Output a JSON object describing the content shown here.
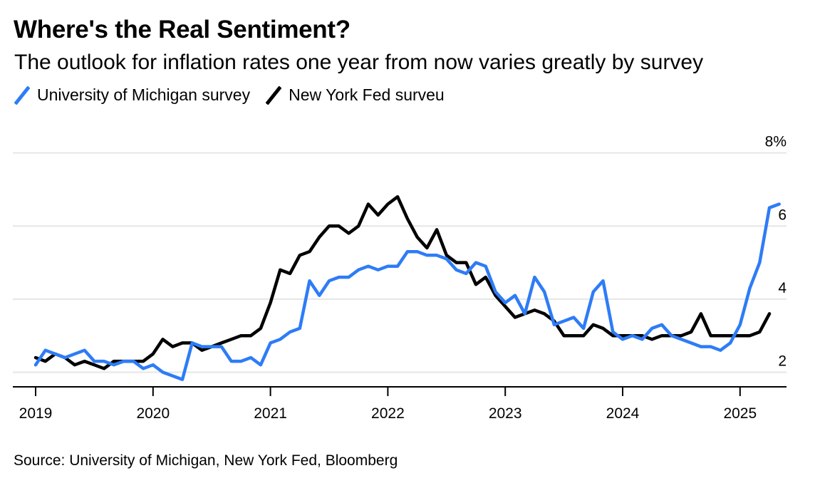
{
  "title": "Where's the Real Sentiment?",
  "subtitle": "The outlook for inflation rates one year from now varies greatly by survey",
  "source": "Source: University of Michigan, New York Fed, Bloomberg",
  "chart_data": {
    "type": "line",
    "title": "Where's the Real Sentiment?",
    "subtitle": "The outlook for inflation rates one year from now varies greatly by survey",
    "xlabel": "",
    "ylabel": "",
    "x_ticks": [
      "2019",
      "2020",
      "2021",
      "2022",
      "2023",
      "2024",
      "2025"
    ],
    "y_ticks": [
      "2",
      "4",
      "6",
      "8%"
    ],
    "y_tick_values": [
      2,
      4,
      6,
      8
    ],
    "ylim": [
      1.6,
      8.5
    ],
    "xlim": [
      "2019-01",
      "2025-08"
    ],
    "grid": "horizontal",
    "legend_position": "top-left",
    "y_axis_side": "right",
    "series": [
      {
        "name": "University of Michigan survey",
        "color": "#2e7cf6",
        "x": [
          "2019-01",
          "2019-02",
          "2019-03",
          "2019-04",
          "2019-05",
          "2019-06",
          "2019-07",
          "2019-08",
          "2019-09",
          "2019-10",
          "2019-11",
          "2019-12",
          "2020-01",
          "2020-02",
          "2020-03",
          "2020-04",
          "2020-05",
          "2020-06",
          "2020-07",
          "2020-08",
          "2020-09",
          "2020-10",
          "2020-11",
          "2020-12",
          "2021-01",
          "2021-02",
          "2021-03",
          "2021-04",
          "2021-05",
          "2021-06",
          "2021-07",
          "2021-08",
          "2021-09",
          "2021-10",
          "2021-11",
          "2021-12",
          "2022-01",
          "2022-02",
          "2022-03",
          "2022-04",
          "2022-05",
          "2022-06",
          "2022-07",
          "2022-08",
          "2022-09",
          "2022-10",
          "2022-11",
          "2022-12",
          "2023-01",
          "2023-02",
          "2023-03",
          "2023-04",
          "2023-05",
          "2023-06",
          "2023-07",
          "2023-08",
          "2023-09",
          "2023-10",
          "2023-11",
          "2023-12",
          "2024-01",
          "2024-02",
          "2024-03",
          "2024-04",
          "2024-05",
          "2024-06",
          "2024-07",
          "2024-08",
          "2024-09",
          "2024-10",
          "2024-11",
          "2024-12",
          "2025-01",
          "2025-02",
          "2025-03",
          "2025-04",
          "2025-05"
        ],
        "values": [
          2.2,
          2.6,
          2.5,
          2.4,
          2.5,
          2.6,
          2.3,
          2.3,
          2.2,
          2.3,
          2.3,
          2.1,
          2.2,
          2.0,
          1.9,
          1.8,
          2.8,
          2.7,
          2.7,
          2.7,
          2.3,
          2.3,
          2.4,
          2.2,
          2.8,
          2.9,
          3.1,
          3.2,
          4.5,
          4.1,
          4.5,
          4.6,
          4.6,
          4.8,
          4.9,
          4.8,
          4.9,
          4.9,
          5.3,
          5.3,
          5.2,
          5.2,
          5.1,
          4.8,
          4.7,
          5.0,
          4.9,
          4.2,
          3.9,
          4.1,
          3.6,
          4.6,
          4.2,
          3.3,
          3.4,
          3.5,
          3.2,
          4.2,
          4.5,
          3.1,
          2.9,
          3.0,
          2.9,
          3.2,
          3.3,
          3.0,
          2.9,
          2.8,
          2.7,
          2.7,
          2.6,
          2.8,
          3.3,
          4.3,
          5.0,
          6.5,
          6.6
        ]
      },
      {
        "name": "New York Fed surveu",
        "color": "#000000",
        "x": [
          "2019-01",
          "2019-02",
          "2019-03",
          "2019-04",
          "2019-05",
          "2019-06",
          "2019-07",
          "2019-08",
          "2019-09",
          "2019-10",
          "2019-11",
          "2019-12",
          "2020-01",
          "2020-02",
          "2020-03",
          "2020-04",
          "2020-05",
          "2020-06",
          "2020-07",
          "2020-08",
          "2020-09",
          "2020-10",
          "2020-11",
          "2020-12",
          "2021-01",
          "2021-02",
          "2021-03",
          "2021-04",
          "2021-05",
          "2021-06",
          "2021-07",
          "2021-08",
          "2021-09",
          "2021-10",
          "2021-11",
          "2021-12",
          "2022-01",
          "2022-02",
          "2022-03",
          "2022-04",
          "2022-05",
          "2022-06",
          "2022-07",
          "2022-08",
          "2022-09",
          "2022-10",
          "2022-11",
          "2022-12",
          "2023-01",
          "2023-02",
          "2023-03",
          "2023-04",
          "2023-05",
          "2023-06",
          "2023-07",
          "2023-08",
          "2023-09",
          "2023-10",
          "2023-11",
          "2023-12",
          "2024-01",
          "2024-02",
          "2024-03",
          "2024-04",
          "2024-05",
          "2024-06",
          "2024-07",
          "2024-08",
          "2024-09",
          "2024-10",
          "2024-11",
          "2024-12",
          "2025-01",
          "2025-02",
          "2025-03",
          "2025-04"
        ],
        "values": [
          2.4,
          2.3,
          2.5,
          2.4,
          2.2,
          2.3,
          2.2,
          2.1,
          2.3,
          2.3,
          2.3,
          2.3,
          2.5,
          2.9,
          2.7,
          2.8,
          2.8,
          2.6,
          2.7,
          2.8,
          2.9,
          3.0,
          3.0,
          3.2,
          3.9,
          4.8,
          4.7,
          5.2,
          5.3,
          5.7,
          6.0,
          6.0,
          5.8,
          6.0,
          6.6,
          6.3,
          6.6,
          6.8,
          6.2,
          5.7,
          5.4,
          5.9,
          5.2,
          5.0,
          5.0,
          4.4,
          4.6,
          4.1,
          3.8,
          3.5,
          3.6,
          3.7,
          3.6,
          3.4,
          3.0,
          3.0,
          3.0,
          3.3,
          3.2,
          3.0,
          3.0,
          3.0,
          3.0,
          2.9,
          3.0,
          3.0,
          3.0,
          3.1,
          3.6,
          3.0,
          3.0,
          3.0,
          3.0,
          3.0,
          3.1,
          3.6
        ]
      }
    ]
  }
}
